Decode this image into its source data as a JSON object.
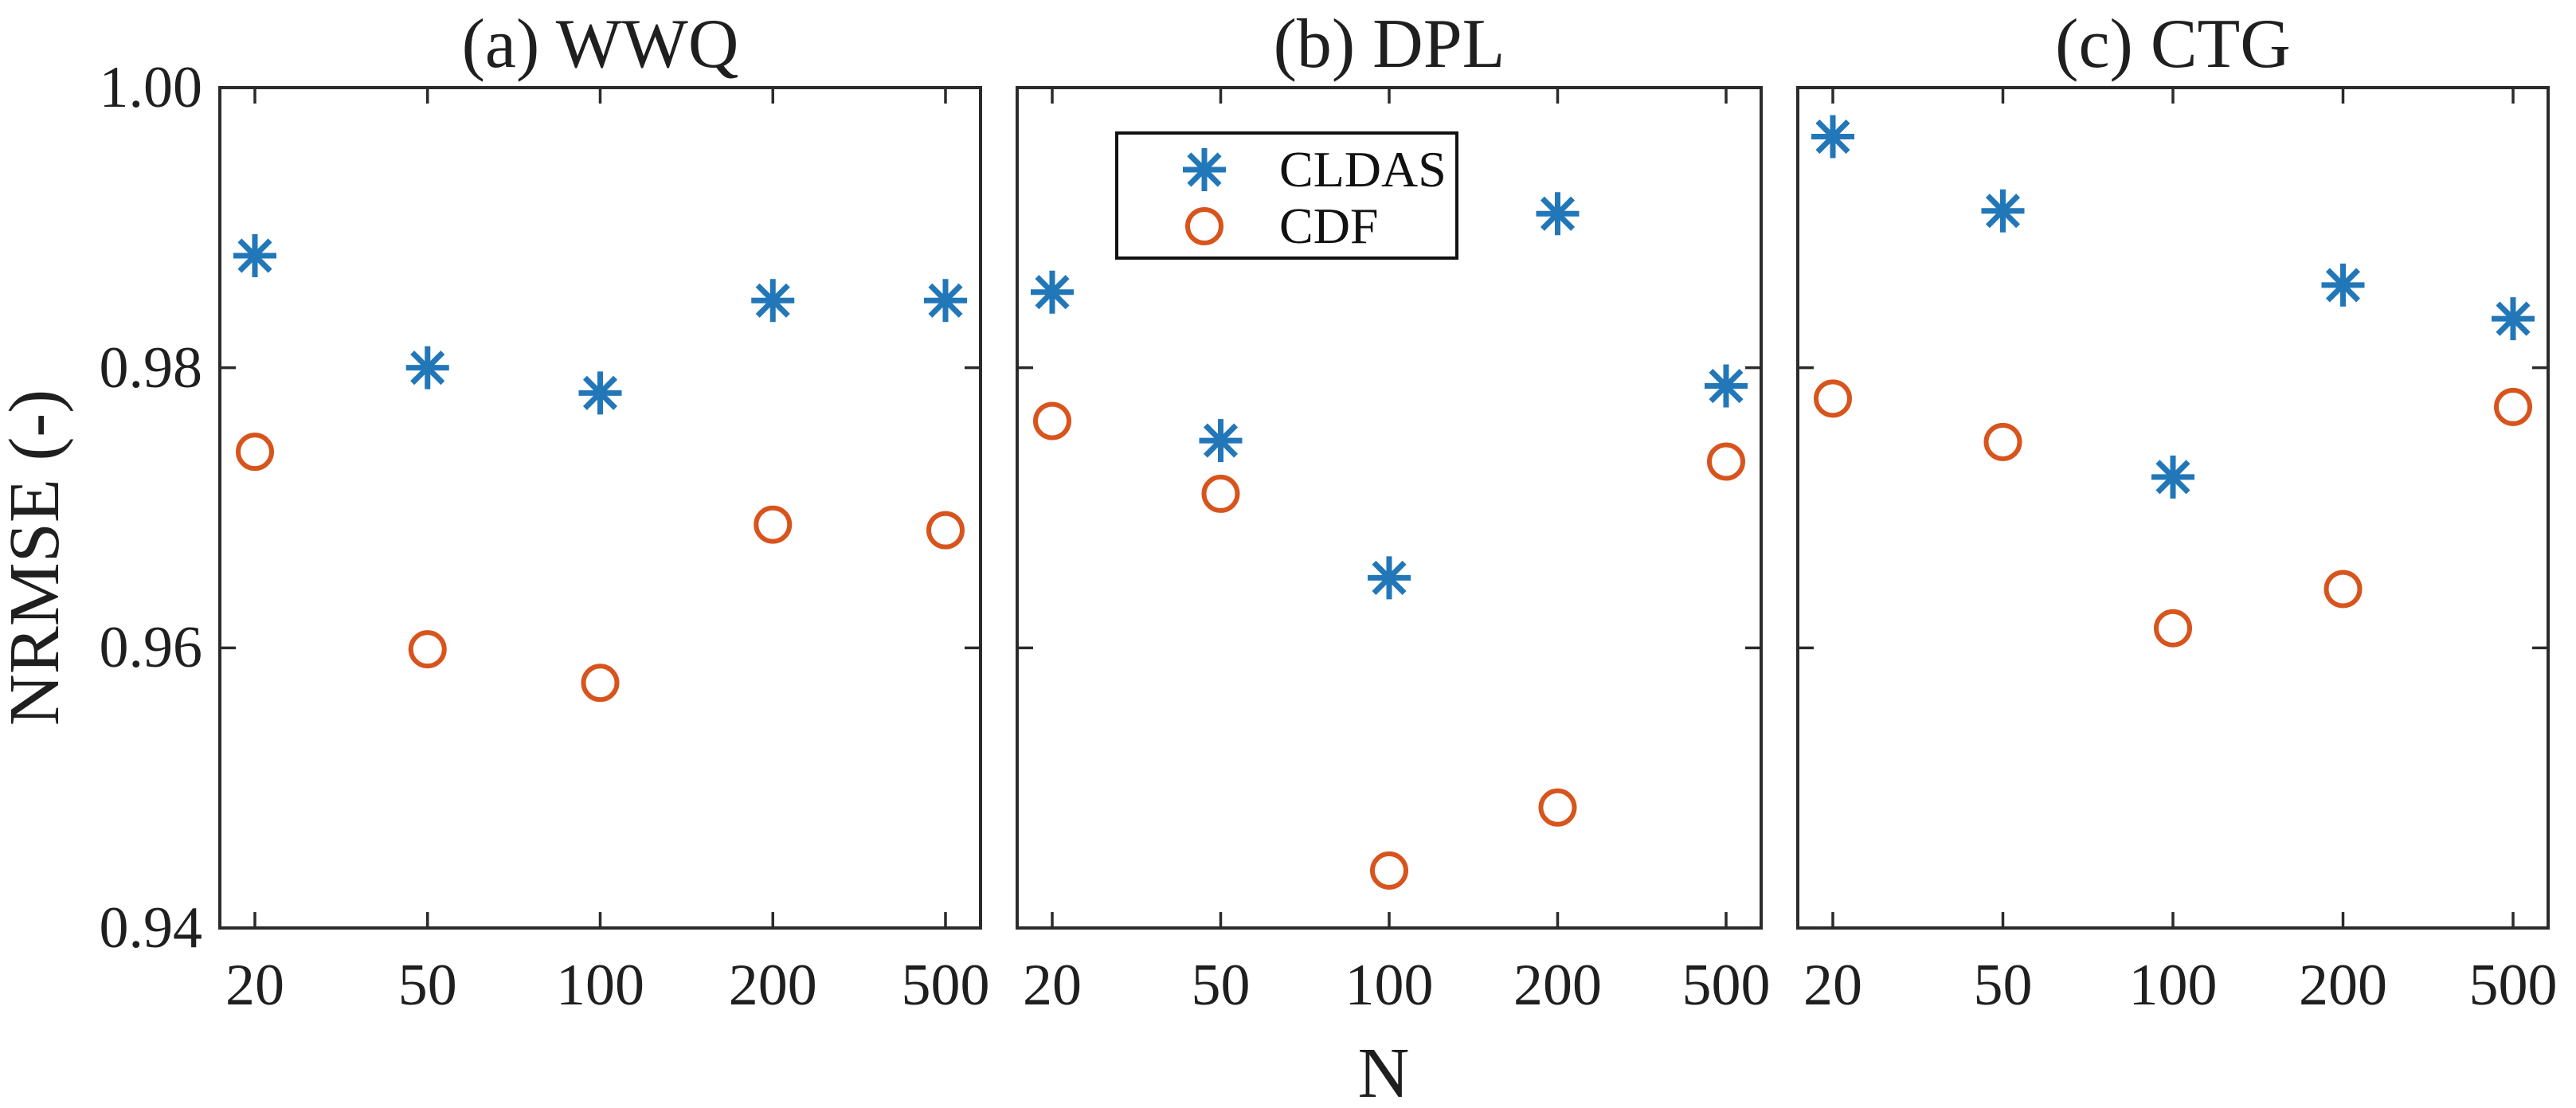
{
  "figure": {
    "ylabel": "NRMSE (-)",
    "xlabel": "N",
    "background": "#ffffff",
    "axis_color": "#2b2b2b",
    "text_color": "#1f1f1f"
  },
  "legend": {
    "position": "panel-b-top-left",
    "entries": [
      {
        "label": "CLDAS",
        "marker": "asterisk-icon",
        "color": "#2277b9"
      },
      {
        "label": "CDF",
        "marker": "circle-icon",
        "color": "#d8541d"
      }
    ]
  },
  "chart_data": [
    {
      "type": "scatter",
      "panel": "a",
      "title": "(a) WWQ",
      "xlabel": "N",
      "ylabel": "NRMSE (-)",
      "categories": [
        20,
        50,
        100,
        200,
        500
      ],
      "xtick_labels": [
        "20",
        "50",
        "100",
        "200",
        "500"
      ],
      "ylim": [
        0.94,
        1.0
      ],
      "yticks": [
        1.0,
        0.98,
        0.96,
        0.94
      ],
      "ytick_labels": [
        "1.00",
        "0.98",
        "0.96",
        "0.94"
      ],
      "grid": false,
      "series": [
        {
          "name": "CLDAS",
          "marker": "asterisk",
          "color": "#2277b9",
          "values": [
            0.988,
            0.98,
            0.9782,
            0.9848,
            0.9848
          ]
        },
        {
          "name": "CDF",
          "marker": "circle",
          "color": "#d8541d",
          "values": [
            0.974,
            0.9599,
            0.9575,
            0.9688,
            0.9684
          ]
        }
      ]
    },
    {
      "type": "scatter",
      "panel": "b",
      "title": "(b) DPL",
      "xlabel": "N",
      "ylabel": "NRMSE (-)",
      "categories": [
        20,
        50,
        100,
        200,
        500
      ],
      "xtick_labels": [
        "20",
        "50",
        "100",
        "200",
        "500"
      ],
      "ylim": [
        0.94,
        1.0
      ],
      "yticks": [
        1.0,
        0.98,
        0.96,
        0.94
      ],
      "ytick_labels": [
        "1.00",
        "0.98",
        "0.96",
        "0.94"
      ],
      "grid": false,
      "show_legend": true,
      "series": [
        {
          "name": "CLDAS",
          "marker": "asterisk",
          "color": "#2277b9",
          "values": [
            0.9854,
            0.9748,
            0.965,
            0.991,
            0.9787
          ]
        },
        {
          "name": "CDF",
          "marker": "circle",
          "color": "#d8541d",
          "values": [
            0.9762,
            0.971,
            0.9441,
            0.9486,
            0.9733
          ]
        }
      ]
    },
    {
      "type": "scatter",
      "panel": "c",
      "title": "(c) CTG",
      "xlabel": "N",
      "ylabel": "NRMSE (-)",
      "categories": [
        20,
        50,
        100,
        200,
        500
      ],
      "xtick_labels": [
        "20",
        "50",
        "100",
        "200",
        "500"
      ],
      "ylim": [
        0.94,
        1.0
      ],
      "yticks": [
        1.0,
        0.98,
        0.96,
        0.94
      ],
      "ytick_labels": [
        "1.00",
        "0.98",
        "0.96",
        "0.94"
      ],
      "grid": false,
      "series": [
        {
          "name": "CLDAS",
          "marker": "asterisk",
          "color": "#2277b9",
          "values": [
            0.9965,
            0.9912,
            0.9722,
            0.9859,
            0.9835
          ]
        },
        {
          "name": "CDF",
          "marker": "circle",
          "color": "#d8541d",
          "values": [
            0.9778,
            0.9747,
            0.9614,
            0.9642,
            0.9772
          ]
        }
      ]
    }
  ]
}
